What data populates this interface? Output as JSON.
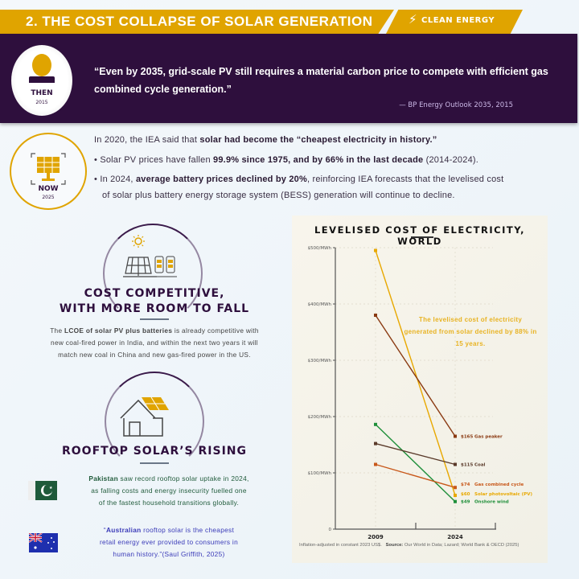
{
  "header": {
    "title": "2. THE COST COLLAPSE OF SOLAR GENERATION",
    "tag": "CLEAN ENERGY",
    "tag_icon": "lightning-icon"
  },
  "then": {
    "label": "THEN",
    "year": "2015",
    "quote": "“Even by 2035, grid-scale PV still requires a material carbon price to compete with efficient gas combined cycle generation.”",
    "attribution": "— BP Energy Outlook 2035, 2015"
  },
  "now": {
    "label": "NOW",
    "year": "2025",
    "intro": [
      {
        "t": "In 2020, the IEA said that "
      },
      {
        "t": "solar had become the “cheapest electricity in history.”",
        "b": true
      }
    ],
    "bullets": [
      [
        {
          "t": "Solar PV prices have fallen "
        },
        {
          "t": "99.9% since 1975, and by 66% in the last decade",
          "b": true
        },
        {
          "t": " (2014-2024)."
        }
      ],
      [
        {
          "t": "In 2024, "
        },
        {
          "t": "average battery prices declined by 20%",
          "b": true
        },
        {
          "t": ", reinforcing IEA forecasts that the levelised cost"
        }
      ],
      [
        {
          "t": "of solar plus battery energy storage system (BESS) generation will continue to decline."
        }
      ]
    ]
  },
  "cost_section": {
    "title_line1": "COST COMPETITIVE,",
    "title_line2": "WITH MORE ROOM TO FALL",
    "text": [
      [
        {
          "t": "The "
        },
        {
          "t": "LCOE of solar PV plus batteries",
          "b": true
        },
        {
          "t": " is already competitive with"
        }
      ],
      [
        {
          "t": "new coal-fired power in India, and within the next two years it will"
        }
      ],
      [
        {
          "t": "match new coal in China and new gas-fired power in the US."
        }
      ]
    ]
  },
  "rooftop_section": {
    "title": "ROOFTOP SOLAR’S RISING",
    "pakistan": [
      [
        {
          "t": "Pakistan",
          "b": true
        },
        {
          "t": " saw record rooftop solar uptake in 2024,"
        }
      ],
      [
        {
          "t": "as falling costs and energy insecurity fuelled one"
        }
      ],
      [
        {
          "t": "of the fastest household transitions globally."
        }
      ]
    ],
    "australia": [
      [
        {
          "t": "“"
        },
        {
          "t": "Australian",
          "b": true
        },
        {
          "t": " rooftop solar is the cheapest"
        }
      ],
      [
        {
          "t": "retail energy ever provided to consumers in"
        }
      ],
      [
        {
          "t": "human history.”(Saul Griffith, 2025)"
        }
      ]
    ]
  },
  "colors": {
    "gold": "#e0a400",
    "purple": "#2e0f3d",
    "pakistan_text": "#1f5a3a",
    "australia_text": "#3a3ab8"
  },
  "chart_data": {
    "type": "line",
    "title": "LEVELISED COST OF ELECTRICITY, WORLD",
    "categories": [
      "2009",
      "2024"
    ],
    "ylim": [
      0,
      500
    ],
    "yticks": [
      {
        "v": 0,
        "label": "0"
      },
      {
        "v": 100,
        "label": "$100/MWh"
      },
      {
        "v": 200,
        "label": "$200/MWh"
      },
      {
        "v": 300,
        "label": "$300/MWh"
      },
      {
        "v": 400,
        "label": "$400/MWh"
      },
      {
        "v": 500,
        "label": "$500/MWh"
      }
    ],
    "grid": true,
    "series": [
      {
        "name": "Solar photovoltaic (PV)",
        "values": [
          495,
          60
        ],
        "end_label": "$60",
        "color": "#e8a800"
      },
      {
        "name": "Gas peaker",
        "values": [
          380,
          165
        ],
        "end_label": "$165",
        "color": "#8a3a12"
      },
      {
        "name": "Onshore wind",
        "values": [
          186,
          49
        ],
        "end_label": "$49",
        "color": "#1f8f3a"
      },
      {
        "name": "Coal",
        "values": [
          152,
          115
        ],
        "end_label": "$115",
        "color": "#5a3a2a"
      },
      {
        "name": "Gas combined cycle",
        "values": [
          115,
          74
        ],
        "end_label": "$74",
        "color": "#c8581a"
      }
    ],
    "annotation": "The levelised cost of electricity generated from solar declined by 88% in 15 years.",
    "footnote": "Inflation-adjusted in constant 2023 US$.",
    "source_label": "Source:",
    "source": "Our World in Data; Lazard; World Bank & OECD (2025)"
  }
}
